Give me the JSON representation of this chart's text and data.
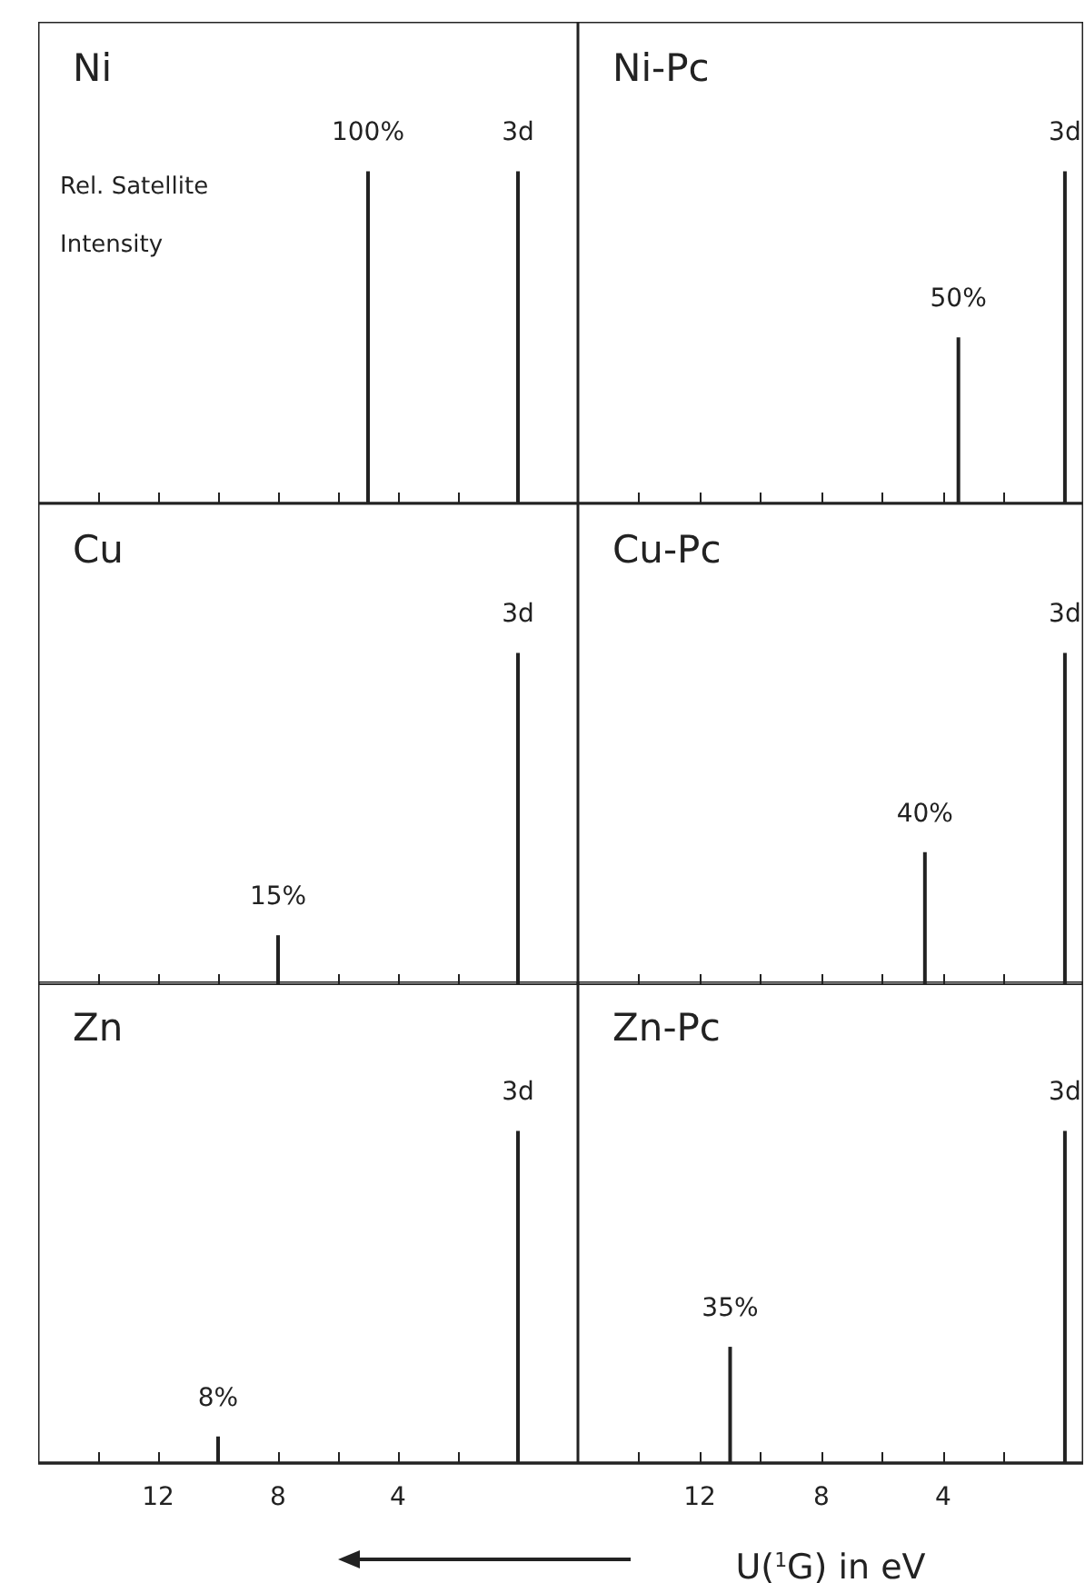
{
  "chart_data": [
    {
      "type": "bar",
      "title": "Ni",
      "xlim": [
        16,
        -2
      ],
      "xticks": [
        {
          "value": 14,
          "label": null
        },
        {
          "value": 12,
          "label": null
        },
        {
          "value": 10,
          "label": null
        },
        {
          "value": 8,
          "label": null
        },
        {
          "value": 6,
          "label": null
        },
        {
          "value": 4,
          "label": null
        },
        {
          "value": 2,
          "label": null
        }
      ],
      "tick_labels": false,
      "annotations": [
        "Rel. Satellite Intensity"
      ],
      "series": [
        {
          "color": "#222222",
          "x": [
            5
          ],
          "values": [
            100
          ],
          "value_labels": [
            "100%"
          ]
        },
        {
          "name": "3d",
          "color": "#222222",
          "x": [
            0
          ],
          "values": [
            100
          ]
        }
      ]
    },
    {
      "type": "bar",
      "title": "Ni-Pc",
      "xlim": [
        16,
        -0.6
      ],
      "xticks": [
        {
          "value": 14,
          "label": null
        },
        {
          "value": 12,
          "label": null
        },
        {
          "value": 10,
          "label": null
        },
        {
          "value": 8,
          "label": null
        },
        {
          "value": 6,
          "label": null
        },
        {
          "value": 4,
          "label": null
        },
        {
          "value": 2,
          "label": null
        }
      ],
      "tick_labels": false,
      "series": [
        {
          "color": "#222222",
          "x": [
            3.5
          ],
          "values": [
            50
          ],
          "value_labels": [
            "50%"
          ]
        },
        {
          "name": "3d",
          "color": "#222222",
          "x": [
            0
          ],
          "values": [
            100
          ]
        }
      ]
    },
    {
      "type": "bar",
      "title": "Cu",
      "xlim": [
        16,
        -2
      ],
      "xticks": [
        {
          "value": 14,
          "label": null
        },
        {
          "value": 12,
          "label": null
        },
        {
          "value": 10,
          "label": null
        },
        {
          "value": 8,
          "label": null
        },
        {
          "value": 6,
          "label": null
        },
        {
          "value": 4,
          "label": null
        },
        {
          "value": 2,
          "label": null
        }
      ],
      "tick_labels": false,
      "series": [
        {
          "color": "#222222",
          "x": [
            8
          ],
          "values": [
            15
          ],
          "value_labels": [
            "15%"
          ]
        },
        {
          "name": "3d",
          "color": "#222222",
          "x": [
            0
          ],
          "values": [
            100
          ]
        }
      ]
    },
    {
      "type": "bar",
      "title": "Cu-Pc",
      "xlim": [
        16,
        -0.6
      ],
      "xticks": [
        {
          "value": 14,
          "label": null
        },
        {
          "value": 12,
          "label": null
        },
        {
          "value": 10,
          "label": null
        },
        {
          "value": 8,
          "label": null
        },
        {
          "value": 6,
          "label": null
        },
        {
          "value": 4,
          "label": null
        },
        {
          "value": 2,
          "label": null
        }
      ],
      "tick_labels": false,
      "series": [
        {
          "color": "#222222",
          "x": [
            4.6
          ],
          "values": [
            40
          ],
          "value_labels": [
            "40%"
          ]
        },
        {
          "name": "3d",
          "color": "#222222",
          "x": [
            0
          ],
          "values": [
            100
          ]
        }
      ]
    },
    {
      "type": "bar",
      "title": "Zn",
      "xlim": [
        16,
        -2
      ],
      "xticks": [
        {
          "value": 14,
          "label": null
        },
        12,
        {
          "value": 10,
          "label": null
        },
        8,
        {
          "value": 6,
          "label": null
        },
        4,
        {
          "value": 2,
          "label": null
        }
      ],
      "tick_labels": "x",
      "series": [
        {
          "color": "#222222",
          "x": [
            10
          ],
          "values": [
            8
          ],
          "value_labels": [
            "8%"
          ]
        },
        {
          "name": "3d",
          "color": "#222222",
          "x": [
            0
          ],
          "values": [
            100
          ]
        }
      ]
    },
    {
      "type": "bar",
      "title": "Zn-Pc",
      "xlabel": "U($^{1}$G) in eV",
      "xlim": [
        16,
        -0.6
      ],
      "xticks": [
        {
          "value": 14,
          "label": null
        },
        12,
        {
          "value": 10,
          "label": null
        },
        8,
        {
          "value": 6,
          "label": null
        },
        4,
        {
          "value": 2,
          "label": null
        }
      ],
      "tick_labels": "x",
      "series": [
        {
          "color": "#222222",
          "x": [
            11
          ],
          "values": [
            35
          ],
          "value_labels": [
            "35%"
          ]
        },
        {
          "name": "3d",
          "color": "#222222",
          "x": [
            0
          ],
          "values": [
            100
          ]
        }
      ]
    }
  ]
}
